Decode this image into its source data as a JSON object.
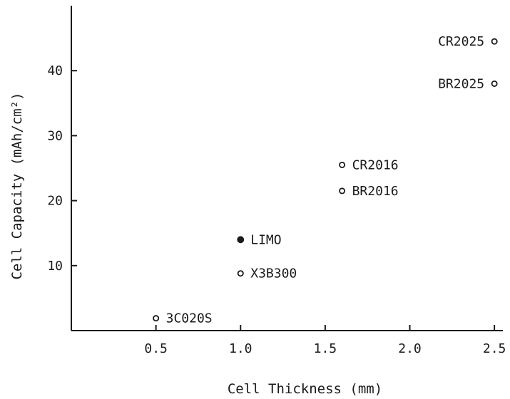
{
  "chart_data": {
    "type": "scatter",
    "xlabel": "Cell Thickness (mm)",
    "ylabel": "Cell Capacity (mAh/cm²)",
    "xlim": [
      0,
      2.55
    ],
    "ylim": [
      0,
      50
    ],
    "x_ticks": [
      "0.5",
      "1.0",
      "1.5",
      "2.0",
      "2.5"
    ],
    "y_ticks": [
      "10",
      "20",
      "30",
      "40"
    ],
    "grid": false,
    "points": [
      {
        "label": "3C020S",
        "x": 0.5,
        "y": 1.9,
        "filled": false
      },
      {
        "label": "X3B300",
        "x": 1.0,
        "y": 8.8,
        "filled": false
      },
      {
        "label": "LIMO",
        "x": 1.0,
        "y": 14.0,
        "filled": true
      },
      {
        "label": "BR2016",
        "x": 1.6,
        "y": 21.5,
        "filled": false
      },
      {
        "label": "CR2016",
        "x": 1.6,
        "y": 25.5,
        "filled": false
      },
      {
        "label": "BR2025",
        "x": 2.5,
        "y": 38.0,
        "filled": false
      },
      {
        "label": "CR2025",
        "x": 2.5,
        "y": 44.5,
        "filled": false
      }
    ]
  }
}
